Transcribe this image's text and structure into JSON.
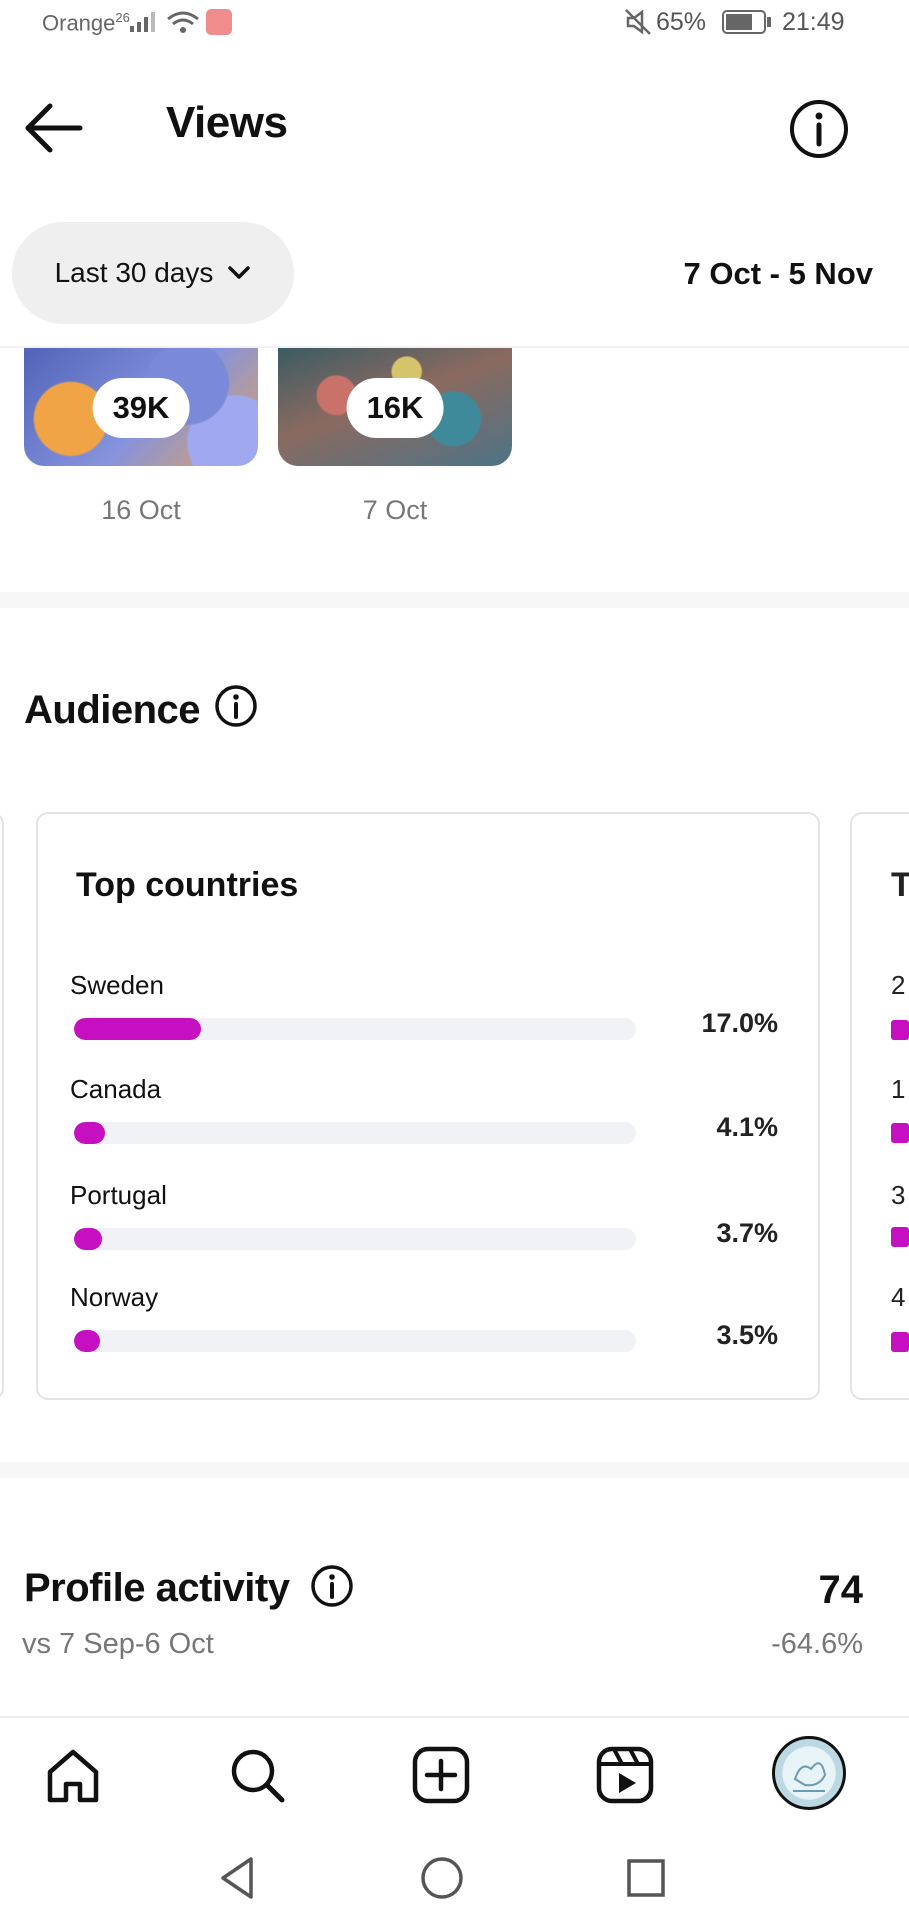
{
  "status_bar": {
    "carrier": "Orange",
    "network": "26",
    "battery": "65%",
    "time": "21:49"
  },
  "header": {
    "title": "Views"
  },
  "date_filter": {
    "label": "Last 30 days",
    "range": "7 Oct - 5 Nov"
  },
  "top_posts": [
    {
      "views": "39K",
      "date": "16 Oct"
    },
    {
      "views": "16K",
      "date": "7 Oct"
    }
  ],
  "audience": {
    "title": "Audience",
    "top_countries": {
      "title": "Top countries",
      "items": [
        {
          "name": "Sweden",
          "percent": "17.0%",
          "value": 17.0
        },
        {
          "name": "Canada",
          "percent": "4.1%",
          "value": 4.1
        },
        {
          "name": "Portugal",
          "percent": "3.7%",
          "value": 3.7
        },
        {
          "name": "Norway",
          "percent": "3.5%",
          "value": 3.5
        }
      ]
    },
    "next_card_peek": [
      "T",
      "2",
      "1",
      "3",
      "4"
    ]
  },
  "profile_activity": {
    "title": "Profile activity",
    "comparison": "vs 7 Sep-6 Oct",
    "value": "74",
    "change": "-64.6%"
  },
  "colors": {
    "accent": "#c50fc0",
    "track": "#f1f2f5",
    "muted_text": "#777777"
  },
  "icons": {
    "back": "arrow-left-icon",
    "info": "info-circle-icon",
    "home": "home-icon",
    "search": "search-icon",
    "create": "plus-square-icon",
    "reels": "reels-icon",
    "profile": "avatar"
  }
}
